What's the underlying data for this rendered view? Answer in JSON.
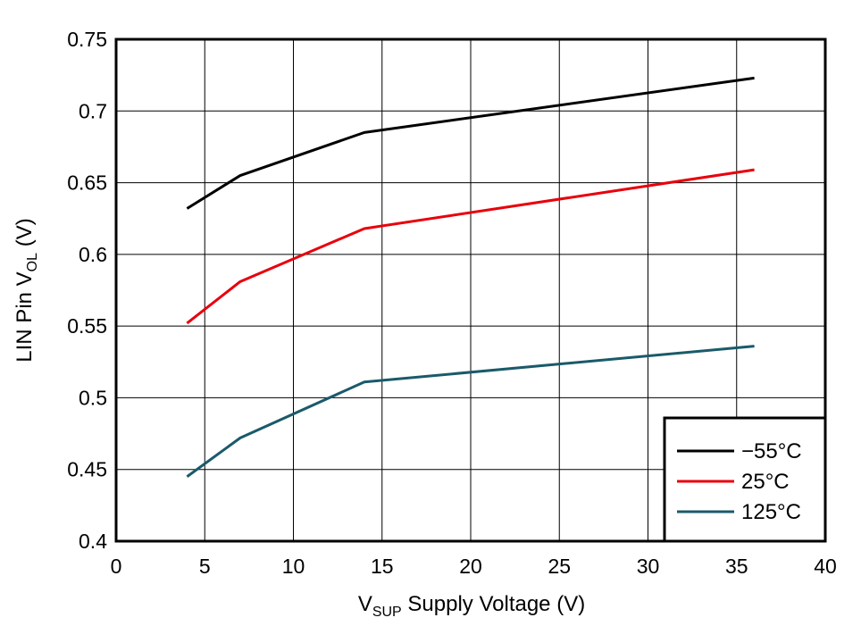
{
  "chart_data": {
    "type": "line",
    "title": "",
    "xlabel": {
      "main": "V",
      "sub": "SUP",
      "rest": " Supply Voltage (V)"
    },
    "ylabel": {
      "main": "LIN Pin V",
      "sub": "OL",
      "rest": " (V)"
    },
    "xlim": [
      0,
      40
    ],
    "ylim": [
      0.4,
      0.75
    ],
    "xticks": [
      0,
      5,
      10,
      15,
      20,
      25,
      30,
      35,
      40
    ],
    "yticks": [
      0.4,
      0.45,
      0.5,
      0.55,
      0.6,
      0.65,
      0.7,
      0.75
    ],
    "xtick_labels": [
      "0",
      "5",
      "10",
      "15",
      "20",
      "25",
      "30",
      "35",
      "40"
    ],
    "ytick_labels": [
      "0.4",
      "0.45",
      "0.5",
      "0.55",
      "0.6",
      "0.65",
      "0.7",
      "0.75"
    ],
    "grid": true,
    "legend_position": "bottom-right",
    "series": [
      {
        "name": "−55°C",
        "color": "#000000",
        "x": [
          4,
          7,
          14,
          36
        ],
        "y": [
          0.632,
          0.655,
          0.685,
          0.723
        ]
      },
      {
        "name": "25°C",
        "color": "#e8000b",
        "x": [
          4,
          7,
          14,
          36
        ],
        "y": [
          0.552,
          0.581,
          0.618,
          0.659
        ]
      },
      {
        "name": "125°C",
        "color": "#1a5a6a",
        "x": [
          4,
          7,
          14,
          36
        ],
        "y": [
          0.445,
          0.472,
          0.511,
          0.536
        ]
      }
    ]
  }
}
